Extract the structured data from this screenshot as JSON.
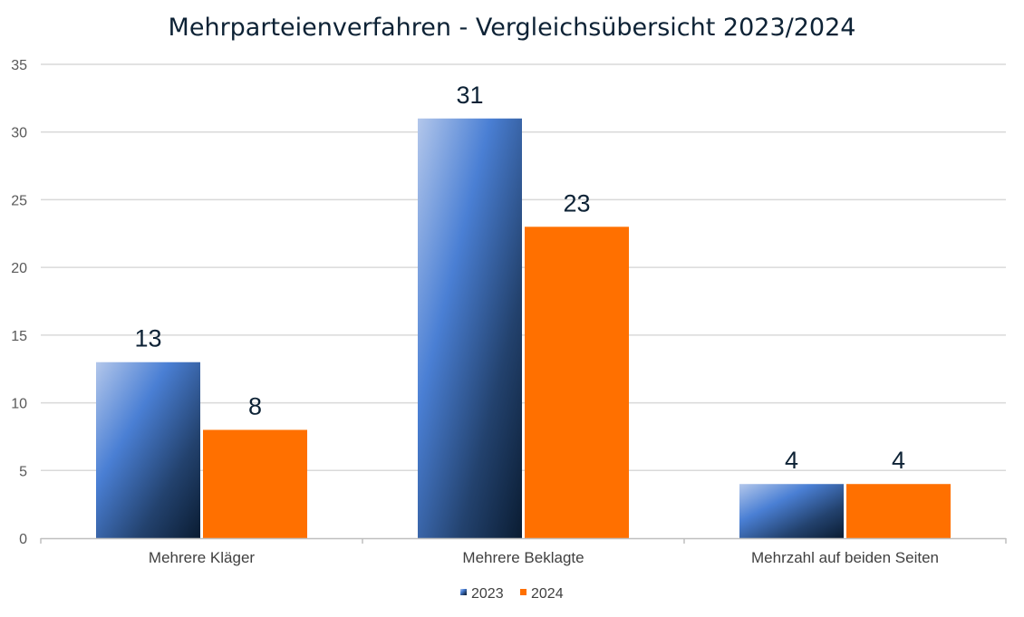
{
  "chart_data": {
    "type": "bar",
    "title": "Mehrparteienverfahren - Vergleichsübersicht 2023/2024",
    "xlabel": "",
    "ylabel": "",
    "categories": [
      "Mehrere Kläger",
      "Mehrere Beklagte",
      "Mehrzahl auf beiden Seiten"
    ],
    "series": [
      {
        "name": "2023",
        "values": [
          13,
          31,
          4
        ],
        "color": "#4a7fd4"
      },
      {
        "name": "2024",
        "values": [
          8,
          23,
          4
        ],
        "color": "#ff7000"
      }
    ],
    "ylim": [
      0,
      35
    ],
    "yticks": [
      "0",
      "5",
      "10",
      "15",
      "20",
      "25",
      "30",
      "35"
    ],
    "data_labels": [
      [
        "13",
        "31",
        "4"
      ],
      [
        "8",
        "23",
        "4"
      ]
    ],
    "grid": true,
    "legend_position": "bottom-center"
  }
}
